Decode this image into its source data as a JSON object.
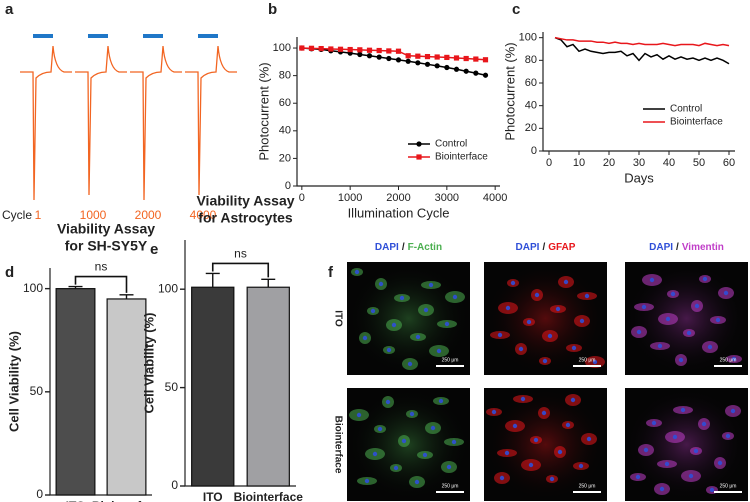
{
  "chart_data": [
    {
      "type": "trace",
      "panel": "a",
      "cycle_label": "Cycle",
      "categories": [
        "1",
        "1000",
        "2000",
        "4000"
      ],
      "color": "#f26522",
      "light_color": "#1f77c8"
    },
    {
      "type": "line",
      "panel": "b",
      "ylabel": "Photocurrent (%)",
      "xlabel": "Illumination Cycle",
      "x": [
        0,
        200,
        400,
        600,
        800,
        1000,
        1200,
        1400,
        1600,
        1800,
        2000,
        2200,
        2400,
        2600,
        2800,
        3000,
        3200,
        3400,
        3600,
        3800
      ],
      "series": [
        {
          "name": "Control",
          "color": "#000000",
          "marker": "circle",
          "values": [
            100,
            99.5,
            99,
            98,
            97.2,
            96.3,
            95.3,
            94.4,
            93.4,
            92.4,
            91.4,
            90.4,
            89.3,
            88.2,
            87.1,
            85.9,
            84.6,
            83.2,
            81.8,
            80.3
          ]
        },
        {
          "name": "Biointerface",
          "color": "#e8161b",
          "marker": "square",
          "values": [
            100,
            99.8,
            99.6,
            99.3,
            99.1,
            98.9,
            98.7,
            98.4,
            98.2,
            97.9,
            97.7,
            94.4,
            94.1,
            93.8,
            93.5,
            93.2,
            92.8,
            92.4,
            92,
            91.5
          ]
        }
      ],
      "xlim": [
        -100,
        4100
      ],
      "xticks": [
        0,
        1000,
        2000,
        3000,
        4000
      ],
      "ylim": [
        0,
        108
      ],
      "yticks": [
        0,
        20,
        40,
        60,
        80,
        100
      ],
      "legend": "lower right"
    },
    {
      "type": "line",
      "panel": "c",
      "ylabel": "Photocurrent (%)",
      "xlabel": "Days",
      "x": [
        2,
        4,
        6,
        8,
        10,
        12,
        14,
        16,
        18,
        20,
        22,
        24,
        26,
        28,
        30,
        32,
        34,
        36,
        38,
        40,
        42,
        44,
        46,
        48,
        50,
        52,
        54,
        56,
        58,
        60
      ],
      "series": [
        {
          "name": "Control",
          "color": "#000000",
          "values": [
            100,
            98,
            92,
            94,
            88,
            90,
            88,
            87,
            86,
            87,
            87,
            88,
            84,
            86,
            80,
            86,
            83,
            85,
            81,
            84,
            81,
            83,
            81,
            82,
            80,
            82,
            80,
            82,
            80,
            77
          ]
        },
        {
          "name": "Biointerface",
          "color": "#e8161b",
          "values": [
            100,
            99,
            98,
            98,
            97,
            97,
            97,
            96,
            96,
            95,
            96,
            95,
            95,
            94,
            95,
            94,
            94,
            94,
            95,
            94,
            93,
            94,
            94,
            94,
            93,
            95,
            94,
            93,
            94,
            93
          ]
        }
      ],
      "xlim": [
        -2,
        62
      ],
      "xticks": [
        0,
        10,
        20,
        30,
        40,
        50,
        60
      ],
      "ylim": [
        0,
        105
      ],
      "yticks": [
        0,
        20,
        40,
        60,
        80,
        100
      ],
      "legend": "lower right"
    },
    {
      "type": "bar",
      "panel": "d",
      "title": [
        "Viability Assay",
        "for SH-SY5Y"
      ],
      "ylabel": "Cell Viability (%)",
      "categories": [
        "ITO",
        "Biointerface"
      ],
      "values": [
        100,
        95
      ],
      "errors": [
        1,
        2
      ],
      "colors": [
        "#4d4d4d",
        "#c8c8c8"
      ],
      "ylim": [
        0,
        110
      ],
      "yticks": [
        0,
        50,
        100
      ],
      "annotation": "ns"
    },
    {
      "type": "bar",
      "panel": "e",
      "title": [
        "Viability Assay",
        "for Astrocytes"
      ],
      "ylabel": "Cell Viability (%)",
      "categories": [
        "ITO",
        "Biointerface"
      ],
      "values": [
        101,
        101
      ],
      "errors": [
        7,
        4
      ],
      "colors": [
        "#3a3a3a",
        "#a0a0a3"
      ],
      "ylim": [
        0,
        125
      ],
      "yticks": [
        0,
        50,
        100
      ],
      "annotation": "ns"
    },
    {
      "type": "image",
      "panel": "f",
      "separator": "/",
      "rows": [
        "ITO",
        "Biointerface"
      ],
      "scale_bar": "250 μm",
      "columns": [
        {
          "stain1": "DAPI",
          "color1": "#2f4fd8",
          "stain2": "F-Actin",
          "color2": "#4caf50"
        },
        {
          "stain1": "DAPI",
          "color1": "#2f4fd8",
          "stain2": "GFAP",
          "color2": "#e8161b"
        },
        {
          "stain1": "DAPI",
          "color1": "#2f4fd8",
          "stain2": "Vimentin",
          "color2": "#c03ec8"
        }
      ]
    }
  ]
}
